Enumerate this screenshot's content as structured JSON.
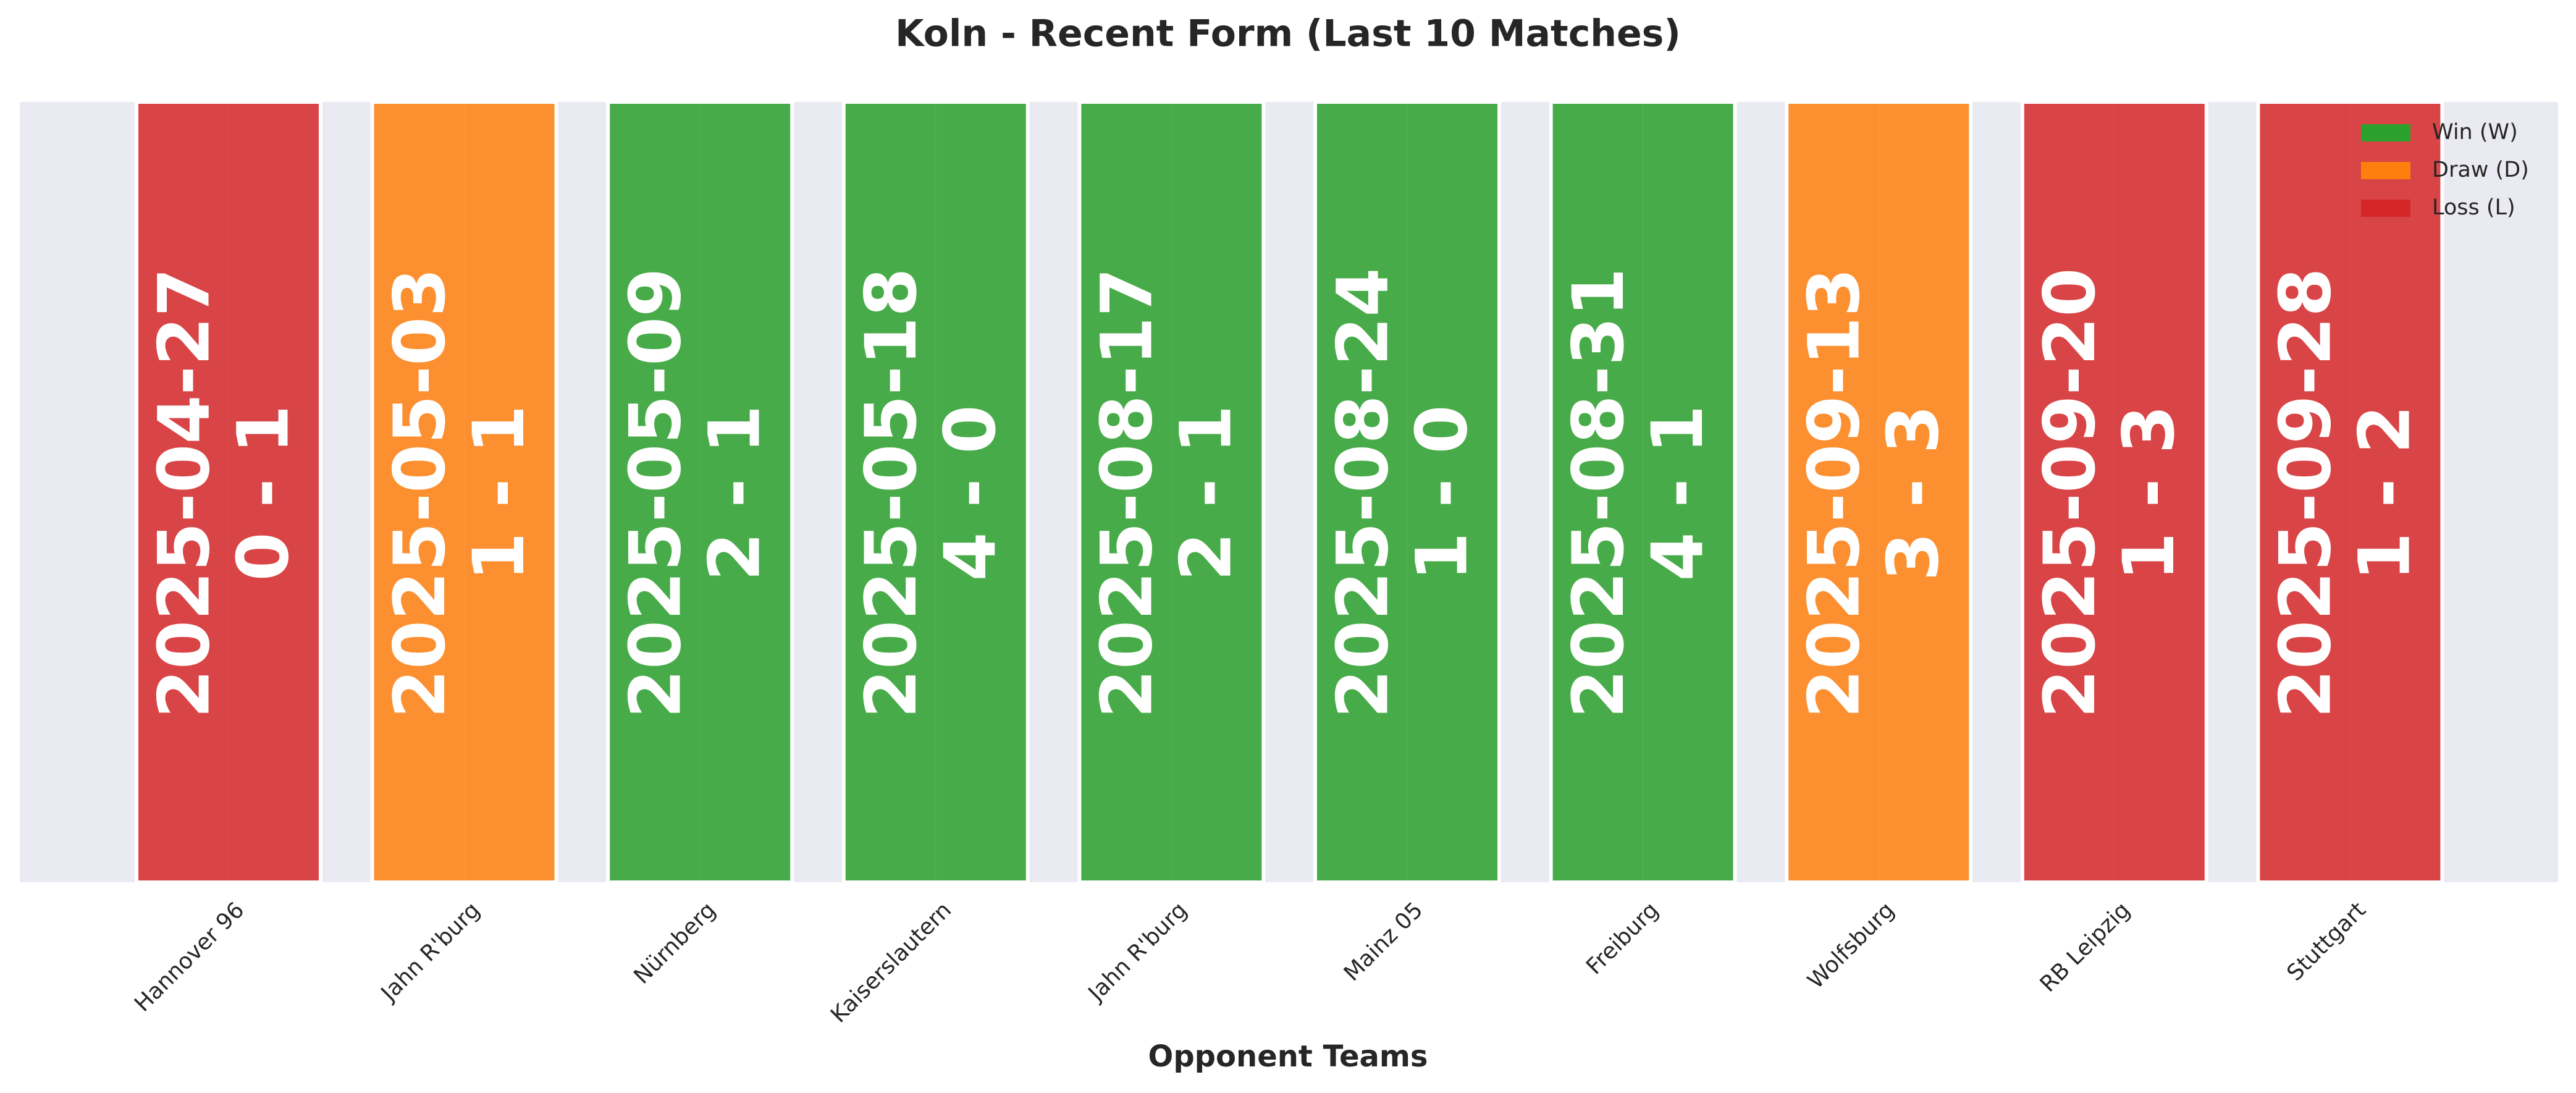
{
  "chart_data": {
    "type": "bar",
    "title": "Koln - Recent Form (Last 10 Matches)",
    "xlabel": "Opponent Teams",
    "categories": [
      "Hannover 96",
      "Jahn R'burg",
      "Nürnberg",
      "Kaiserslautern",
      "Jahn R'burg",
      "Mainz 05",
      "Freiburg",
      "Wolfsburg",
      "RB Leipzig",
      "Stuttgart"
    ],
    "dates": [
      "2025-04-27",
      "2025-05-03",
      "2025-05-09",
      "2025-05-18",
      "2025-08-17",
      "2025-08-24",
      "2025-08-31",
      "2025-09-13",
      "2025-09-20",
      "2025-09-28"
    ],
    "scores": [
      "0 - 1",
      "1 - 1",
      "2 - 1",
      "4 - 0",
      "2 - 1",
      "1 - 0",
      "4 - 1",
      "3 - 3",
      "1 - 3",
      "1 - 2"
    ],
    "colors": [
      "#d62728",
      "#ff7f0e",
      "#2ca02c",
      "#2ca02c",
      "#2ca02c",
      "#2ca02c",
      "#2ca02c",
      "#ff7f0e",
      "#d62728",
      "#d62728"
    ],
    "legend": [
      {
        "name": "Win (W)",
        "color": "#2ca02c"
      },
      {
        "name": "Draw (D)",
        "color": "#ff7f0e"
      },
      {
        "name": "Loss (L)",
        "color": "#d62728"
      }
    ],
    "legend_position": "upper right",
    "grid": true
  }
}
